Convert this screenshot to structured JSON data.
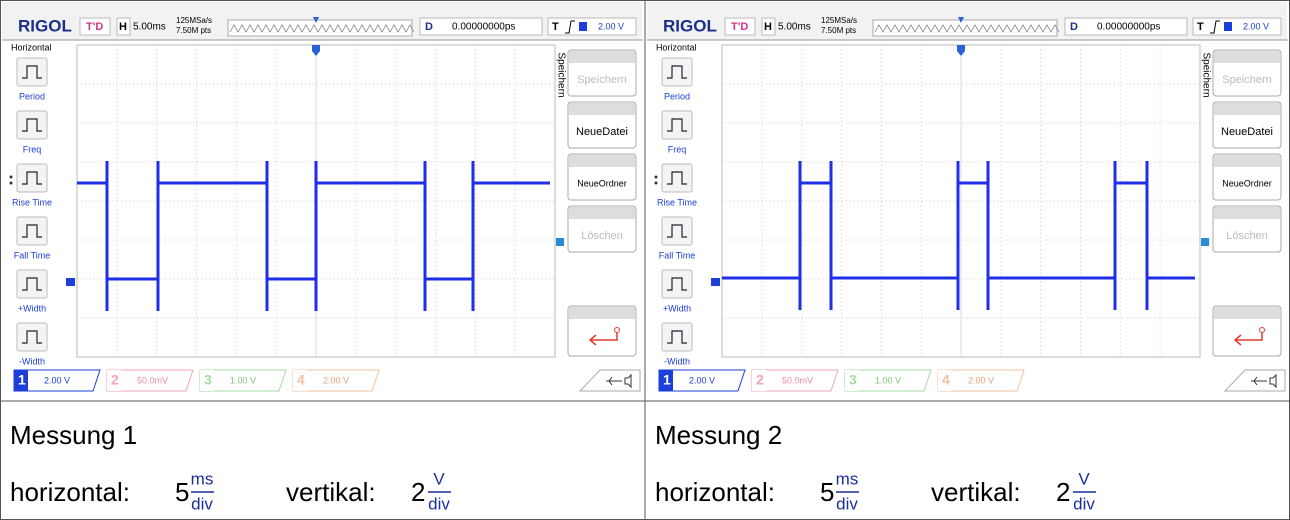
{
  "panels": [
    {
      "header": {
        "brand": "RIGOL",
        "trigger_mode": "T'D",
        "h": "H",
        "timebase": "5.00ms",
        "sample_rate": "125MSa/s",
        "memory": "7.50M pts",
        "d": "D",
        "delay": "0.00000000ps",
        "t": "T",
        "trigger_level": "2.00 V"
      },
      "left_menu": {
        "title": "Horizontal",
        "items": [
          "Period",
          "Freq",
          "Rise Time",
          "Fall Time",
          "+Width",
          "-Width"
        ]
      },
      "right_menu": {
        "title": "Speichern",
        "items": [
          "Speichern",
          "NeueDatei",
          "NeueOrdner",
          "Löschen"
        ]
      },
      "channels": [
        {
          "number": "1",
          "scale": "2.00 V"
        },
        {
          "number": "2",
          "scale": "50.0mV"
        },
        {
          "number": "3",
          "scale": "1.00 V"
        },
        {
          "number": "4",
          "scale": "2.00 V"
        }
      ],
      "caption": {
        "title": "Messung 1",
        "horizontal_label": "horizontal:",
        "horizontal_value": "5",
        "horizontal_unit_num": "ms",
        "horizontal_unit_den": "div",
        "vertical_label": "vertikal:",
        "vertical_value": "2",
        "vertical_unit_num": "V",
        "vertical_unit_den": "div"
      }
    },
    {
      "header": {
        "brand": "RIGOL",
        "trigger_mode": "T'D",
        "h": "H",
        "timebase": "5.00ms",
        "sample_rate": "125MSa/s",
        "memory": "7.50M pts",
        "d": "D",
        "delay": "0.00000000ps",
        "t": "T",
        "trigger_level": "2.00 V"
      },
      "left_menu": {
        "title": "Horizontal",
        "items": [
          "Period",
          "Freq",
          "Rise Time",
          "Fall Time",
          "+Width",
          "-Width"
        ]
      },
      "right_menu": {
        "title": "Speichern",
        "items": [
          "Speichern",
          "NeueDatei",
          "NeueOrdner",
          "Löschen"
        ]
      },
      "channels": [
        {
          "number": "1",
          "scale": "2.00 V"
        },
        {
          "number": "2",
          "scale": "50.0mV"
        },
        {
          "number": "3",
          "scale": "1.00 V"
        },
        {
          "number": "4",
          "scale": "2.00 V"
        }
      ],
      "caption": {
        "title": "Messung 2",
        "horizontal_label": "horizontal:",
        "horizontal_value": "5",
        "horizontal_unit_num": "ms",
        "horizontal_unit_den": "div",
        "vertical_label": "vertikal:",
        "vertical_value": "2",
        "vertical_unit_num": "V",
        "vertical_unit_den": "div"
      }
    }
  ]
}
